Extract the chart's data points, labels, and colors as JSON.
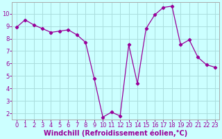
{
  "x": [
    0,
    1,
    2,
    3,
    4,
    5,
    6,
    7,
    8,
    9,
    10,
    11,
    12,
    13,
    14,
    15,
    16,
    17,
    18,
    19,
    20,
    21,
    22,
    23
  ],
  "y": [
    8.9,
    9.5,
    9.1,
    8.8,
    8.5,
    8.6,
    8.7,
    8.3,
    7.7,
    4.8,
    1.7,
    2.1,
    1.8,
    7.5,
    4.4,
    8.8,
    9.9,
    10.5,
    10.6,
    7.5,
    7.9,
    6.5,
    5.9,
    5.7
  ],
  "line_color": "#990099",
  "marker": "D",
  "marker_size": 2.2,
  "bg_color": "#ccffff",
  "grid_color": "#aadddd",
  "xlabel": "Windchill (Refroidissement éolien,°C)",
  "ylim": [
    1.5,
    10.9
  ],
  "xlim": [
    -0.5,
    23.5
  ],
  "yticks": [
    2,
    3,
    4,
    5,
    6,
    7,
    8,
    9,
    10
  ],
  "xticks": [
    0,
    1,
    2,
    3,
    4,
    5,
    6,
    7,
    8,
    9,
    10,
    11,
    12,
    13,
    14,
    15,
    16,
    17,
    18,
    19,
    20,
    21,
    22,
    23
  ],
  "tick_color": "#990099",
  "label_color": "#990099",
  "tick_fontsize": 6.0,
  "xlabel_fontsize": 7.0,
  "spine_color": "#aaaaaa"
}
